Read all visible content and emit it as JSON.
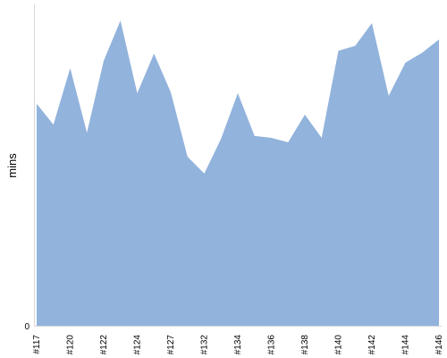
{
  "chart_data": {
    "type": "area",
    "ylabel": "mins",
    "xlabel": "",
    "ylim": [
      0,
      100
    ],
    "x_tick_labels": [
      "#117",
      "#120",
      "#122",
      "#124",
      "#127",
      "#132",
      "#134",
      "#136",
      "#138",
      "#140",
      "#142",
      "#144",
      "#146"
    ],
    "y_tick_labels": [
      "0"
    ],
    "grid": false,
    "series": [
      {
        "color": "#92b3dc",
        "values": [
          69.1,
          62.6,
          80.2,
          60.1,
          82.5,
          95.0,
          72.4,
          84.7,
          72.7,
          52.6,
          47.4,
          58.2,
          72.4,
          59.1,
          58.5,
          57.1,
          65.7,
          58.5,
          85.6,
          87.1,
          94.2,
          71.6,
          81.9,
          85.0,
          89.1
        ]
      }
    ]
  }
}
